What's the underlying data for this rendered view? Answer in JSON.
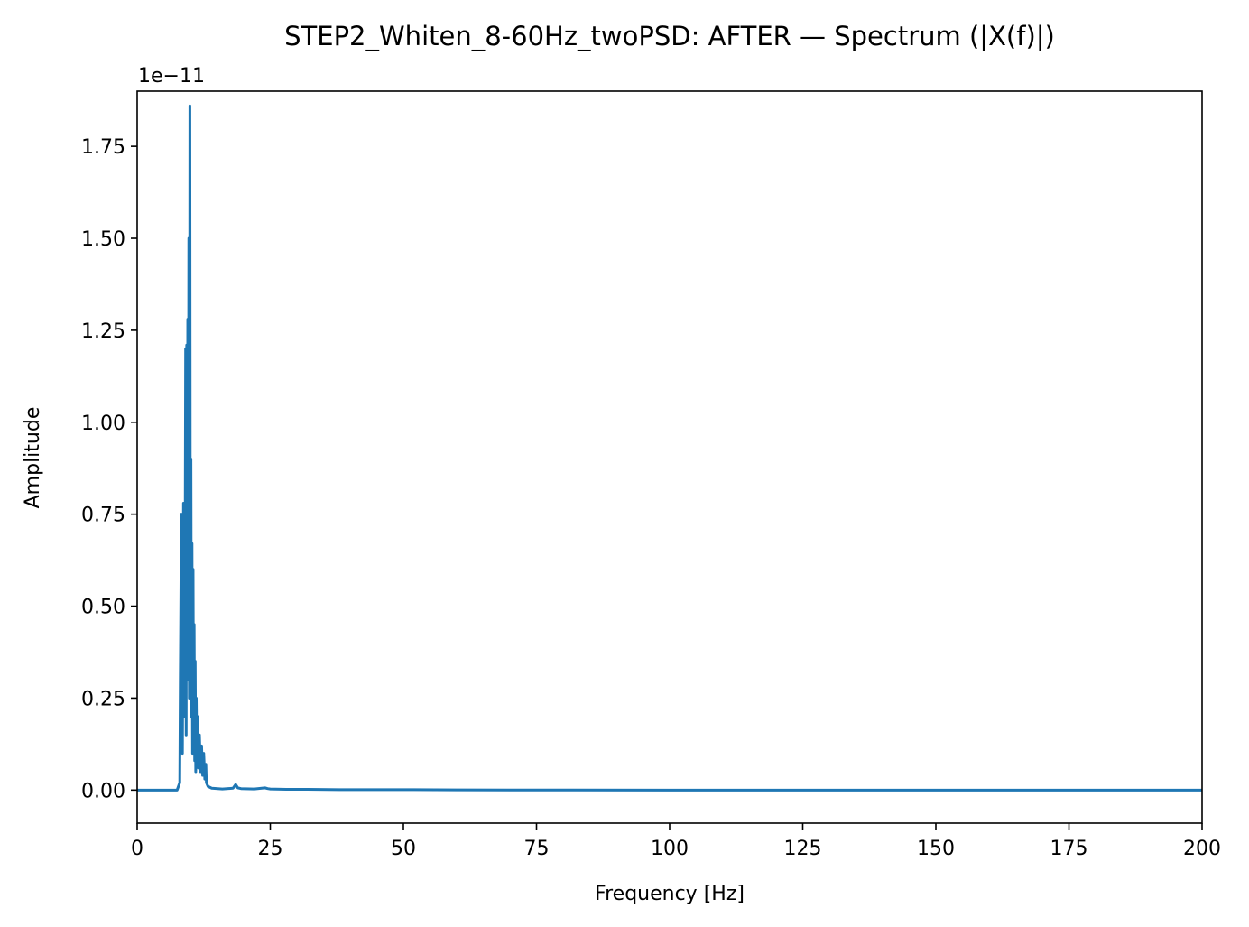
{
  "chart_data": {
    "type": "line",
    "title": "STEP2_Whiten_8-60Hz_twoPSD: AFTER — Spectrum (|X(f)|)",
    "xlabel": "Frequency [Hz]",
    "ylabel": "Amplitude",
    "y_offset_label": "1e−11",
    "xlim": [
      0,
      200
    ],
    "ylim": [
      -0.09,
      1.9
    ],
    "y_scale_exponent": -11,
    "grid": false,
    "legend": "none",
    "x_ticks": [
      0,
      25,
      50,
      75,
      100,
      125,
      150,
      175,
      200
    ],
    "x_tick_labels": [
      "0",
      "25",
      "50",
      "75",
      "100",
      "125",
      "150",
      "175",
      "200"
    ],
    "y_ticks": [
      0,
      0.25,
      0.5,
      0.75,
      1.0,
      1.25,
      1.5,
      1.75
    ],
    "y_tick_labels": [
      "0.00",
      "0.25",
      "0.50",
      "0.75",
      "1.00",
      "1.25",
      "1.50",
      "1.75"
    ],
    "line_color": "#1f77b4",
    "series": [
      {
        "x": [
          0,
          7.5,
          8.0,
          8.1,
          8.3,
          8.5,
          8.7,
          8.9,
          9.0,
          9.1,
          9.2,
          9.3,
          9.4,
          9.5,
          9.6,
          9.7,
          9.8,
          9.9,
          10.0,
          10.1,
          10.2,
          10.3,
          10.4,
          10.5,
          10.6,
          10.7,
          10.8,
          10.9,
          11.0,
          11.1,
          11.2,
          11.3,
          11.5,
          11.7,
          11.9,
          12.1,
          12.3,
          12.5,
          12.7,
          12.9,
          13.0,
          13.3,
          14.0,
          16.0,
          18.0,
          18.5,
          18.9,
          19.5,
          22.0,
          24.0,
          24.5,
          25.0,
          28.0,
          32.0,
          38.0,
          45.0,
          52.0,
          60.0,
          70.0,
          100.0,
          150.0,
          200.0
        ],
        "y": [
          0,
          0,
          0.02,
          0.3,
          0.75,
          0.1,
          0.78,
          0.2,
          0.6,
          1.2,
          0.15,
          1.21,
          0.4,
          1.28,
          0.3,
          1.5,
          0.25,
          1.86,
          0.35,
          0.9,
          0.2,
          0.67,
          0.1,
          0.6,
          0.12,
          0.45,
          0.08,
          0.35,
          0.05,
          0.25,
          0.1,
          0.2,
          0.06,
          0.15,
          0.05,
          0.12,
          0.04,
          0.1,
          0.03,
          0.07,
          0.02,
          0.01,
          0.005,
          0.003,
          0.005,
          0.015,
          0.006,
          0.004,
          0.003,
          0.006,
          0.004,
          0.003,
          0.002,
          0.002,
          0.001,
          0.001,
          0.001,
          0.0005,
          0.0002,
          0,
          0,
          0
        ]
      }
    ]
  }
}
